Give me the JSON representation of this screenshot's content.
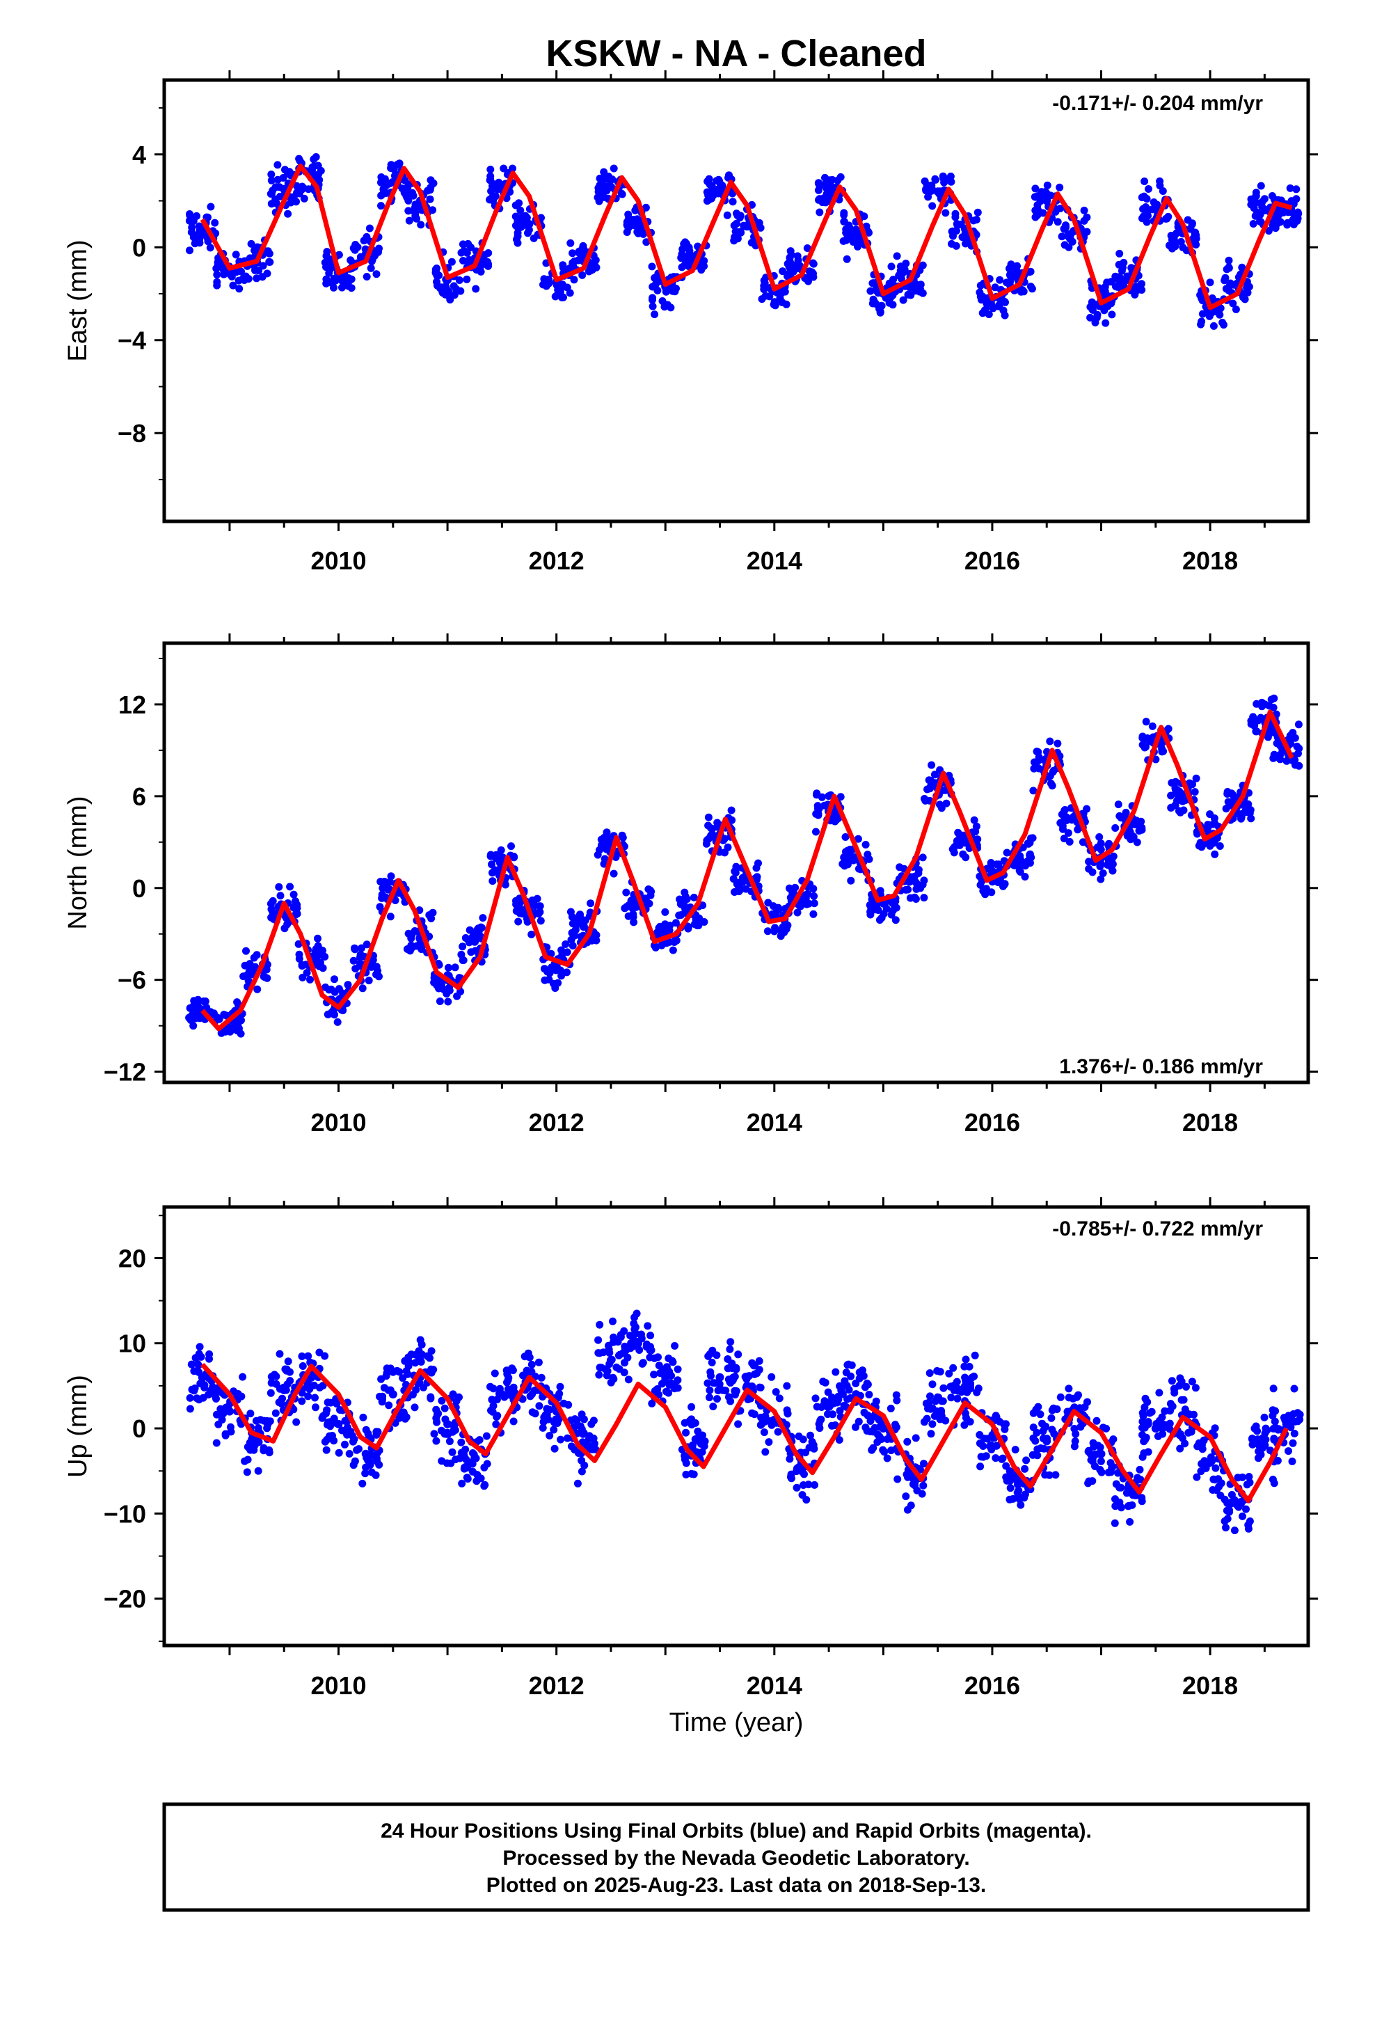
{
  "title": "KSKW  - NA - Cleaned",
  "xlabel": "Time (year)",
  "footer": [
    "24 Hour Positions Using Final Orbits (blue) and Rapid Orbits (magenta).",
    "Processed by the Nevada Geodetic Laboratory.",
    "Plotted on 2025-Aug-23. Last data on 2018-Sep-13."
  ],
  "colors": {
    "data": "#0000ff",
    "fit": "#ff0000",
    "axes": "#000000"
  },
  "chart_data": [
    {
      "type": "scatter",
      "ylabel": "East (mm)",
      "rate": "-0.171+/- 0.204 mm/yr",
      "xlim": [
        2008.4,
        2018.9
      ],
      "ylim": [
        -11.8,
        7.2
      ],
      "xticks": [
        2010,
        2012,
        2014,
        2016,
        2018
      ],
      "yticks": [
        4,
        0,
        -4,
        -8
      ],
      "series": [
        {
          "x": [
            2008.75,
            2009.0,
            2009.25,
            2009.5,
            2009.75,
            2010.0,
            2010.25,
            2010.5,
            2010.75,
            2011.0,
            2011.25,
            2011.5,
            2011.75,
            2012.0,
            2012.25,
            2012.5,
            2012.75,
            2013.0,
            2013.25,
            2013.5,
            2013.75,
            2014.0,
            2014.25,
            2014.5,
            2014.75,
            2015.0,
            2015.25,
            2015.5,
            2015.75,
            2016.0,
            2016.25,
            2016.5,
            2016.75,
            2017.0,
            2017.25,
            2017.5,
            2017.75,
            2018.0,
            2018.25,
            2018.5,
            2018.7
          ],
          "y": [
            0.8,
            -1.0,
            -0.5,
            2.5,
            3.0,
            -1.2,
            -0.3,
            2.8,
            2.0,
            -1.4,
            -0.6,
            2.6,
            1.0,
            -1.5,
            -0.6,
            2.6,
            1.0,
            -1.7,
            -0.4,
            2.4,
            0.9,
            -1.8,
            -0.9,
            2.3,
            0.6,
            -2.0,
            -1.3,
            2.4,
            0.8,
            -2.2,
            -1.3,
            2.0,
            0.7,
            -2.3,
            -1.4,
            1.8,
            0.6,
            -2.5,
            -1.6,
            1.6,
            1.6
          ]
        }
      ],
      "fit": {
        "x": [
          2008.75,
          2009.0,
          2009.25,
          2009.5,
          2009.65,
          2009.8,
          2010.0,
          2010.25,
          2010.45,
          2010.6,
          2010.75,
          2011.0,
          2011.25,
          2011.45,
          2011.6,
          2011.75,
          2012.0,
          2012.25,
          2012.45,
          2012.6,
          2012.75,
          2013.0,
          2013.25,
          2013.45,
          2013.6,
          2013.75,
          2014.0,
          2014.25,
          2014.45,
          2014.6,
          2014.75,
          2015.0,
          2015.25,
          2015.45,
          2015.6,
          2015.75,
          2016.0,
          2016.25,
          2016.45,
          2016.6,
          2016.75,
          2017.0,
          2017.25,
          2017.45,
          2017.6,
          2017.75,
          2018.0,
          2018.25,
          2018.45,
          2018.6,
          2018.75
        ],
        "y": [
          1.2,
          -0.9,
          -0.6,
          2.0,
          3.5,
          2.6,
          -1.1,
          -0.6,
          1.8,
          3.4,
          2.4,
          -1.3,
          -0.8,
          1.6,
          3.2,
          2.2,
          -1.4,
          -0.9,
          1.4,
          3.0,
          2.0,
          -1.6,
          -1.0,
          1.2,
          2.8,
          1.8,
          -1.8,
          -1.2,
          1.0,
          2.6,
          1.6,
          -2.0,
          -1.4,
          0.9,
          2.5,
          1.4,
          -2.2,
          -1.6,
          0.7,
          2.3,
          1.2,
          -2.4,
          -1.8,
          0.5,
          2.1,
          1.0,
          -2.6,
          -2.0,
          0.3,
          1.9,
          1.7
        ]
      }
    },
    {
      "type": "scatter",
      "ylabel": "North (mm)",
      "rate": "1.376+/- 0.186 mm/yr",
      "xlim": [
        2008.4,
        2018.9
      ],
      "ylim": [
        -12.7,
        16.0
      ],
      "xticks": [
        2010,
        2012,
        2014,
        2016,
        2018
      ],
      "yticks": [
        12,
        6,
        0,
        -6,
        -12
      ],
      "series": [
        {
          "x": [
            2008.75,
            2009.0,
            2009.25,
            2009.5,
            2009.75,
            2010.0,
            2010.25,
            2010.5,
            2010.75,
            2011.0,
            2011.25,
            2011.5,
            2011.75,
            2012.0,
            2012.25,
            2012.5,
            2012.75,
            2013.0,
            2013.25,
            2013.5,
            2013.75,
            2014.0,
            2014.25,
            2014.5,
            2014.75,
            2015.0,
            2015.25,
            2015.5,
            2015.75,
            2016.0,
            2016.25,
            2016.5,
            2016.75,
            2017.0,
            2017.25,
            2017.5,
            2017.75,
            2018.0,
            2018.25,
            2018.5,
            2018.7
          ],
          "y": [
            -8.0,
            -8.5,
            -5.5,
            -1.5,
            -4.5,
            -7.5,
            -5.0,
            -0.5,
            -3.0,
            -6.0,
            -3.5,
            1.5,
            -1.5,
            -5.0,
            -2.5,
            2.5,
            -1.0,
            -3.0,
            -1.5,
            3.5,
            0.5,
            -2.0,
            -0.5,
            5.0,
            2.0,
            -1.0,
            0.5,
            6.5,
            3.0,
            0.5,
            2.0,
            8.0,
            4.5,
            2.0,
            4.0,
            9.5,
            6.0,
            3.5,
            5.5,
            11.0,
            9.0
          ]
        }
      ],
      "fit": {
        "x": [
          2008.75,
          2008.9,
          2009.1,
          2009.3,
          2009.5,
          2009.65,
          2009.85,
          2010.0,
          2010.2,
          2010.4,
          2010.55,
          2010.7,
          2010.9,
          2011.1,
          2011.3,
          2011.55,
          2011.7,
          2011.9,
          2012.1,
          2012.3,
          2012.55,
          2012.7,
          2012.9,
          2013.1,
          2013.3,
          2013.55,
          2013.7,
          2013.95,
          2014.1,
          2014.3,
          2014.55,
          2014.7,
          2014.95,
          2015.1,
          2015.3,
          2015.55,
          2015.7,
          2015.95,
          2016.1,
          2016.3,
          2016.55,
          2016.7,
          2016.95,
          2017.1,
          2017.3,
          2017.55,
          2017.7,
          2017.95,
          2018.1,
          2018.3,
          2018.55,
          2018.75
        ],
        "y": [
          -8.0,
          -9.2,
          -8.0,
          -5.0,
          -1.0,
          -3.0,
          -7.0,
          -7.8,
          -6.0,
          -2.0,
          0.5,
          -1.5,
          -5.5,
          -6.5,
          -4.5,
          2.0,
          -0.5,
          -4.5,
          -5.0,
          -3.0,
          3.3,
          0.5,
          -3.5,
          -3.0,
          -1.0,
          4.5,
          2.0,
          -2.2,
          -2.0,
          0.5,
          6.0,
          3.5,
          -0.8,
          -0.5,
          2.0,
          7.5,
          5.0,
          0.5,
          1.0,
          3.5,
          9.0,
          6.5,
          1.8,
          2.5,
          5.0,
          10.5,
          8.0,
          3.2,
          3.8,
          6.0,
          11.5,
          8.5
        ]
      }
    },
    {
      "type": "scatter",
      "ylabel": "Up (mm)",
      "rate": "-0.785+/- 0.722 mm/yr",
      "xlim": [
        2008.4,
        2018.9
      ],
      "ylim": [
        -25.5,
        26.0
      ],
      "xticks": [
        2010,
        2012,
        2014,
        2016,
        2018
      ],
      "yticks": [
        20,
        10,
        0,
        -10,
        -20
      ],
      "series": [
        {
          "x": [
            2008.75,
            2009.0,
            2009.25,
            2009.5,
            2009.75,
            2010.0,
            2010.25,
            2010.5,
            2010.75,
            2011.0,
            2011.25,
            2011.5,
            2011.75,
            2012.0,
            2012.25,
            2012.5,
            2012.75,
            2013.0,
            2013.25,
            2013.5,
            2013.75,
            2014.0,
            2014.25,
            2014.5,
            2014.75,
            2015.0,
            2015.25,
            2015.5,
            2015.75,
            2016.0,
            2016.25,
            2016.5,
            2016.75,
            2017.0,
            2017.25,
            2017.5,
            2017.75,
            2018.0,
            2018.25,
            2018.5,
            2018.7
          ],
          "y": [
            6.0,
            2.0,
            -1.5,
            4.5,
            6.0,
            0.5,
            -3.0,
            4.0,
            6.0,
            0.5,
            -3.5,
            4.0,
            5.5,
            2.0,
            -2.0,
            8.0,
            10.0,
            6.0,
            -2.5,
            6.0,
            5.0,
            1.0,
            -4.0,
            3.0,
            4.0,
            0.0,
            -5.5,
            3.5,
            4.5,
            -1.0,
            -6.0,
            -1.5,
            2.0,
            -3.0,
            -7.0,
            0.0,
            1.5,
            -4.0,
            -9.0,
            -2.0,
            0.5
          ]
        }
      ],
      "fit": {
        "x": [
          2008.75,
          2009.0,
          2009.2,
          2009.4,
          2009.6,
          2009.75,
          2010.0,
          2010.2,
          2010.35,
          2010.55,
          2010.75,
          2011.0,
          2011.2,
          2011.35,
          2011.55,
          2011.75,
          2012.0,
          2012.2,
          2012.35,
          2012.55,
          2012.75,
          2013.0,
          2013.2,
          2013.35,
          2013.55,
          2013.75,
          2014.0,
          2014.2,
          2014.35,
          2014.55,
          2014.75,
          2015.0,
          2015.2,
          2015.35,
          2015.55,
          2015.75,
          2016.0,
          2016.2,
          2016.35,
          2016.55,
          2016.75,
          2017.0,
          2017.2,
          2017.35,
          2017.55,
          2017.75,
          2018.0,
          2018.2,
          2018.35,
          2018.55,
          2018.7
        ],
        "y": [
          7.5,
          4.0,
          -0.5,
          -1.5,
          4.0,
          7.3,
          4.0,
          -1.0,
          -2.3,
          2.5,
          6.8,
          3.5,
          -1.5,
          -3.0,
          1.5,
          6.0,
          3.0,
          -2.0,
          -3.8,
          0.5,
          5.2,
          2.5,
          -2.5,
          -4.5,
          0.0,
          4.5,
          2.0,
          -3.0,
          -5.2,
          -1.0,
          3.5,
          1.5,
          -3.5,
          -6.0,
          -1.5,
          3.0,
          0.5,
          -4.5,
          -6.8,
          -2.5,
          2.0,
          -0.5,
          -5.0,
          -7.5,
          -3.0,
          1.3,
          -1.0,
          -6.0,
          -8.5,
          -4.0,
          0.0
        ]
      }
    }
  ]
}
